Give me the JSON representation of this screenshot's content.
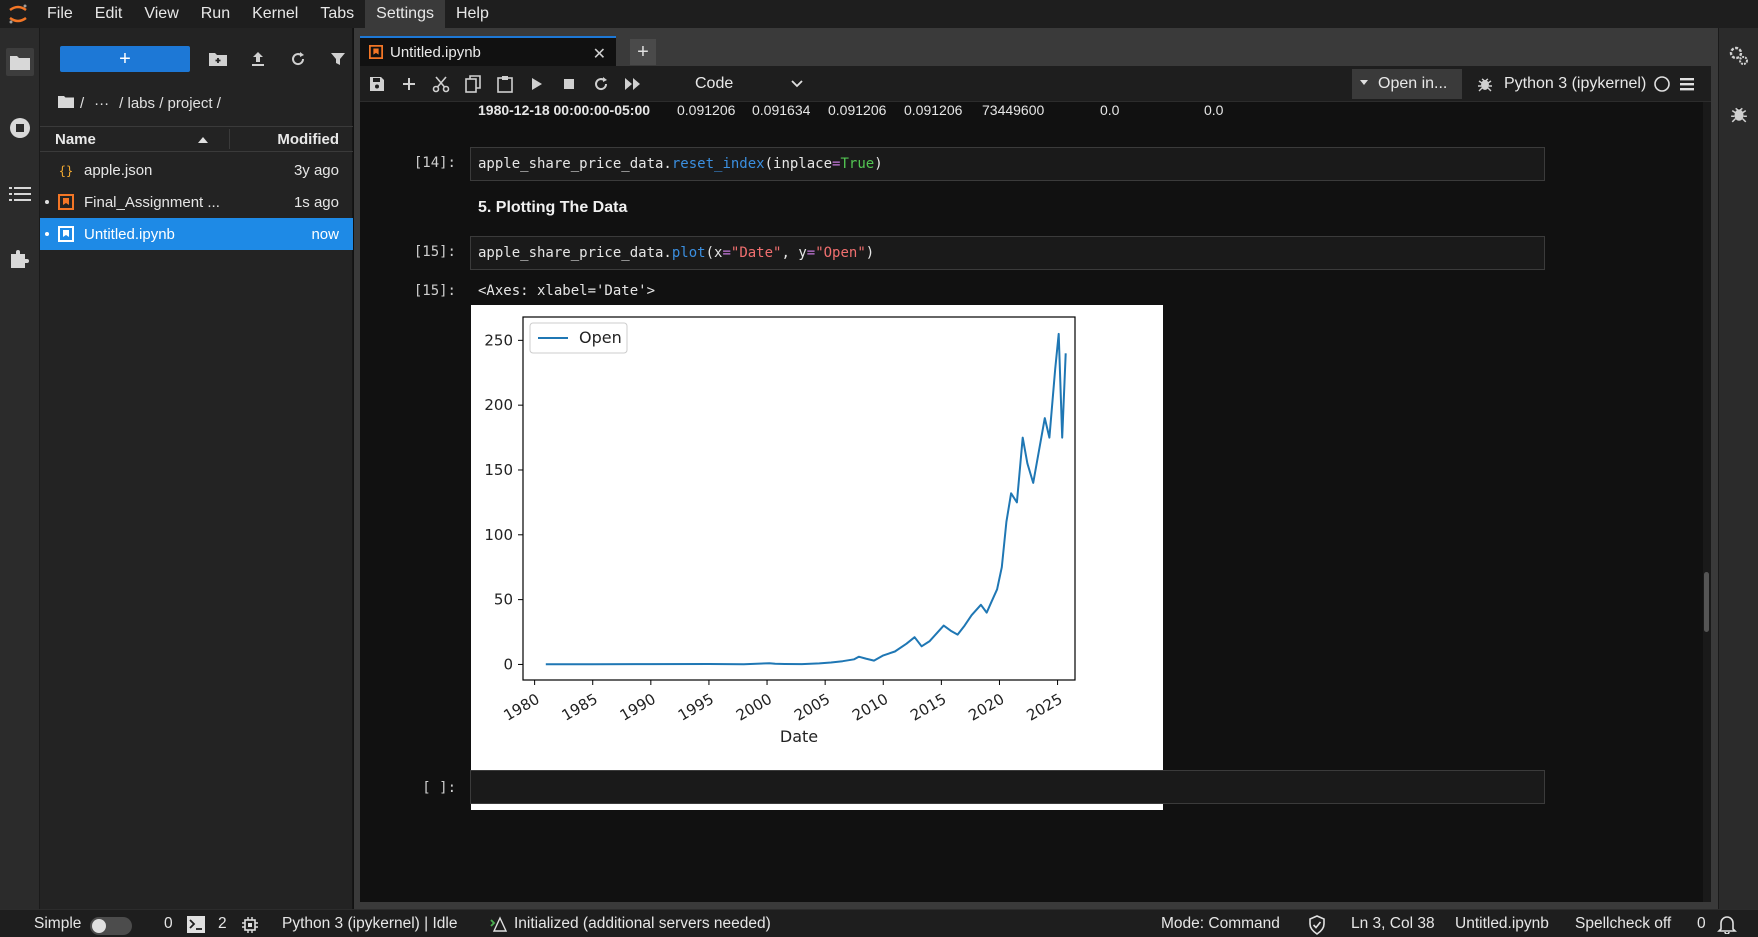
{
  "menu": [
    "File",
    "Edit",
    "View",
    "Run",
    "Kernel",
    "Tabs",
    "Settings",
    "Help"
  ],
  "menu_active": "Settings",
  "filebrowser": {
    "new_label": "+",
    "breadcrumbs": [
      "/",
      "···",
      "/ labs / project /"
    ],
    "col_name": "Name",
    "col_modified": "Modified",
    "files": [
      {
        "name": "apple.json",
        "modified": "3y ago",
        "type": "json-icon",
        "running": false,
        "selected": false
      },
      {
        "name": "Final_Assignment ...",
        "modified": "1s ago",
        "type": "notebook-icon",
        "running": true,
        "selected": false
      },
      {
        "name": "Untitled.ipynb",
        "modified": "now",
        "type": "notebook-icon",
        "running": true,
        "selected": true
      }
    ]
  },
  "tab": {
    "label": "Untitled.ipynb",
    "close": "✕",
    "add": "+"
  },
  "toolbar": {
    "cell_type": "Code",
    "open_in": "Open in...",
    "kernel": "Python 3 (ipykernel)"
  },
  "notebook": {
    "df_row": {
      "index": "1980-12-18 00:00:00-05:00",
      "values": [
        "0.091206",
        "0.091634",
        "0.091206",
        "0.091206",
        "73449600",
        "0.0",
        "0.0"
      ]
    },
    "cell14_prompt": "[14]:",
    "cell14_code": {
      "obj": "apple_share_price_data.",
      "fn": "reset_index",
      "open": "(inplace",
      "eq": "=",
      "kw": "True",
      "close": ")"
    },
    "heading": "5. Plotting The Data",
    "cell15_prompt": "[15]:",
    "cell15_code": {
      "obj": "apple_share_price_data.",
      "fn": "plot",
      "p1": "(x",
      "eq1": "=",
      "s1": "\"Date\"",
      "p2": ", y",
      "eq2": "=",
      "s2": "\"Open\"",
      "p3": ")"
    },
    "out15_prompt": "[15]:",
    "out15_text": "<Axes: xlabel='Date'>",
    "empty_prompt": "[ ]:"
  },
  "chart_data": {
    "type": "line",
    "xlabel": "Date",
    "ylabel": "",
    "legend": [
      "Open"
    ],
    "legend_position": "top-left",
    "xlim": [
      1979.0,
      2026.5
    ],
    "ylim": [
      -12,
      268
    ],
    "xticks": [
      1980,
      1985,
      1990,
      1995,
      2000,
      2005,
      2010,
      2015,
      2020,
      2025
    ],
    "yticks": [
      0,
      50,
      100,
      150,
      200,
      250
    ],
    "series": [
      {
        "name": "Open",
        "color": "#1f77b4",
        "x": [
          1980.96,
          1985,
          1990,
          1995,
          1998,
          2000.2,
          2000.7,
          2001.5,
          2003,
          2004.5,
          2005.5,
          2006.5,
          2007.5,
          2007.9,
          2008.5,
          2009.2,
          2010,
          2011,
          2012,
          2012.7,
          2013.3,
          2014,
          2014.6,
          2015.2,
          2015.8,
          2016.4,
          2017,
          2017.6,
          2018.4,
          2018.9,
          2019.3,
          2019.8,
          2020.2,
          2020.6,
          2021,
          2021.5,
          2022,
          2022.4,
          2022.9,
          2023.4,
          2023.9,
          2024.3,
          2024.8,
          2025.1,
          2025.4,
          2025.7
        ],
        "y": [
          0.09,
          0.1,
          0.3,
          0.35,
          0.2,
          0.9,
          0.5,
          0.35,
          0.3,
          0.8,
          1.5,
          2.5,
          4,
          6,
          4.5,
          3,
          7,
          10,
          16,
          21,
          14,
          18,
          24,
          30,
          26,
          23,
          30,
          38,
          46,
          40,
          48,
          58,
          75,
          110,
          132,
          125,
          175,
          155,
          140,
          165,
          190,
          175,
          228,
          255,
          175,
          240
        ]
      }
    ]
  }
}
